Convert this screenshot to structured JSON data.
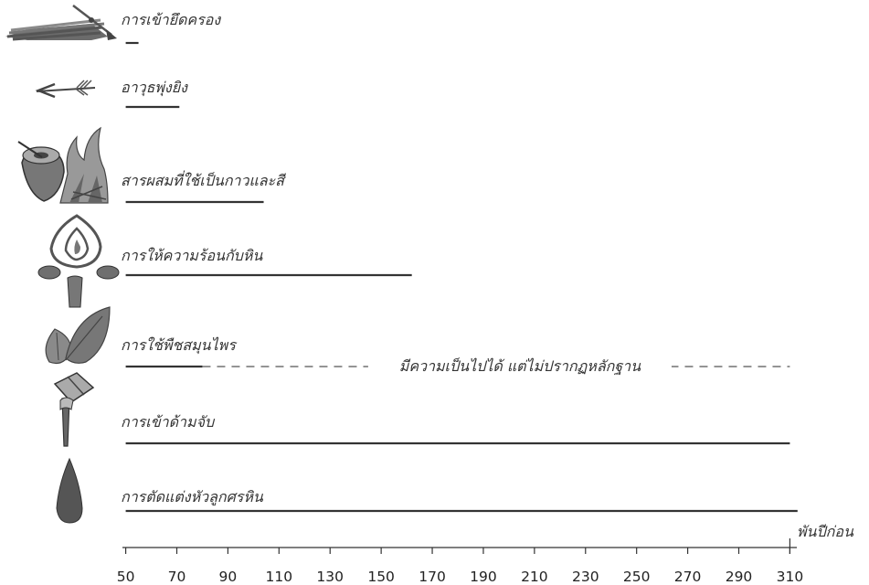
{
  "chart_data": {
    "type": "timeline",
    "x_unit_label": "พันปีก่อน",
    "xlim": [
      48,
      312
    ],
    "ticks": [
      50,
      70,
      90,
      110,
      130,
      150,
      170,
      190,
      210,
      230,
      250,
      270,
      290,
      310
    ],
    "rows": [
      {
        "label": "การเข้ายึดครอง",
        "start": 50,
        "end": 55,
        "icon": "spears-icon"
      },
      {
        "label": "อาวุธพุ่งยิง",
        "start": 50,
        "end": 71,
        "icon": "arrow-icon"
      },
      {
        "label": "สารผสมที่ใช้เป็นกาวและสี",
        "start": 50,
        "end": 104,
        "icon": "glue-fire-icon"
      },
      {
        "label": "การให้ความร้อนกับหิน",
        "start": 50,
        "end": 162,
        "icon": "campfire-stones-icon"
      },
      {
        "label": "การใช้พืชสมุนไพร",
        "start": 50,
        "end": 80,
        "dashed_end": 310,
        "icon": "leaves-icon"
      },
      {
        "label": "การเข้าด้ามจับ",
        "start": 50,
        "end": 310,
        "icon": "hafted-axe-icon"
      },
      {
        "label": "การตัดแต่งหัวลูกศรหิน",
        "start": 50,
        "end": 313,
        "icon": "stone-point-icon"
      }
    ],
    "annotation": "มีความเป็นไปได้ แต่ไม่ปรากฏหลักฐาน"
  }
}
